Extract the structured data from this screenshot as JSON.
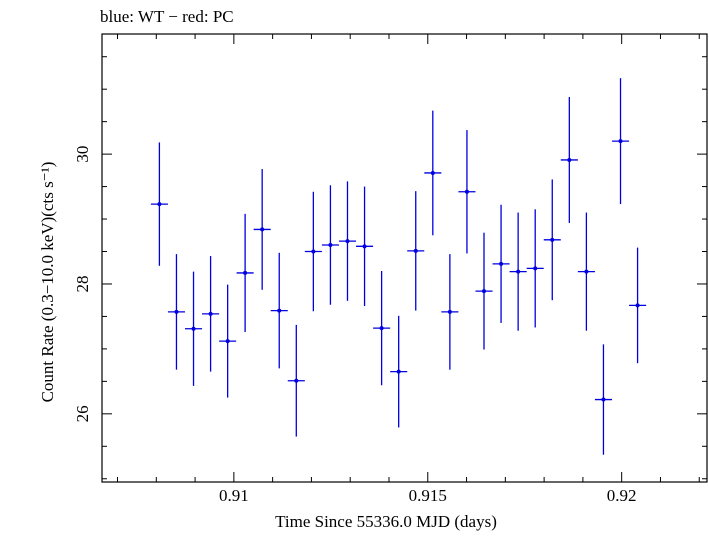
{
  "chart_data": {
    "type": "scatter",
    "title": "blue: WT − red: PC",
    "xlabel": "Time Since 55336.0 MJD (days)",
    "ylabel": "Count Rate (0.3−10.0 keV)(cts s⁻¹)",
    "xlim": [
      0.9066,
      0.9222
    ],
    "ylim": [
      24.95,
      31.85
    ],
    "xticks": [
      {
        "value": 0.91,
        "label": "0.91"
      },
      {
        "value": 0.915,
        "label": "0.915"
      },
      {
        "value": 0.92,
        "label": "0.92"
      }
    ],
    "yticks": [
      {
        "value": 26,
        "label": "26"
      },
      {
        "value": 28,
        "label": "28"
      },
      {
        "value": 30,
        "label": "30"
      }
    ],
    "x_minor_step": 0.001,
    "y_minor_step": 0.5,
    "grid": false,
    "series": [
      {
        "name": "WT",
        "color": "#0000e0",
        "points": [
          {
            "x": 0.90808,
            "xerr": 0.00022,
            "y": 29.23,
            "yerr": 0.95
          },
          {
            "x": 0.90852,
            "xerr": 0.00022,
            "y": 27.57,
            "yerr": 0.89
          },
          {
            "x": 0.90896,
            "xerr": 0.00022,
            "y": 27.31,
            "yerr": 0.88
          },
          {
            "x": 0.9094,
            "xerr": 0.00022,
            "y": 27.54,
            "yerr": 0.89
          },
          {
            "x": 0.90984,
            "xerr": 0.00022,
            "y": 27.12,
            "yerr": 0.87
          },
          {
            "x": 0.91029,
            "xerr": 0.00022,
            "y": 28.17,
            "yerr": 0.91
          },
          {
            "x": 0.91073,
            "xerr": 0.00022,
            "y": 28.84,
            "yerr": 0.93
          },
          {
            "x": 0.91117,
            "xerr": 0.00022,
            "y": 27.59,
            "yerr": 0.89
          },
          {
            "x": 0.91161,
            "xerr": 0.00022,
            "y": 26.51,
            "yerr": 0.86
          },
          {
            "x": 0.91205,
            "xerr": 0.00022,
            "y": 28.5,
            "yerr": 0.92
          },
          {
            "x": 0.91249,
            "xerr": 0.00022,
            "y": 28.6,
            "yerr": 0.92
          },
          {
            "x": 0.91293,
            "xerr": 0.00022,
            "y": 28.66,
            "yerr": 0.92
          },
          {
            "x": 0.91337,
            "xerr": 0.00022,
            "y": 28.58,
            "yerr": 0.92
          },
          {
            "x": 0.91381,
            "xerr": 0.00022,
            "y": 27.32,
            "yerr": 0.88
          },
          {
            "x": 0.91425,
            "xerr": 0.00022,
            "y": 26.65,
            "yerr": 0.86
          },
          {
            "x": 0.91469,
            "xerr": 0.00022,
            "y": 28.51,
            "yerr": 0.92
          },
          {
            "x": 0.91513,
            "xerr": 0.00022,
            "y": 29.71,
            "yerr": 0.96
          },
          {
            "x": 0.91557,
            "xerr": 0.00022,
            "y": 27.57,
            "yerr": 0.89
          },
          {
            "x": 0.91601,
            "xerr": 0.00022,
            "y": 29.42,
            "yerr": 0.95
          },
          {
            "x": 0.91645,
            "xerr": 0.00022,
            "y": 27.89,
            "yerr": 0.9
          },
          {
            "x": 0.91689,
            "xerr": 0.00022,
            "y": 28.31,
            "yerr": 0.91
          },
          {
            "x": 0.91733,
            "xerr": 0.00022,
            "y": 28.19,
            "yerr": 0.91
          },
          {
            "x": 0.91777,
            "xerr": 0.00022,
            "y": 28.24,
            "yerr": 0.91
          },
          {
            "x": 0.91821,
            "xerr": 0.00022,
            "y": 28.68,
            "yerr": 0.93
          },
          {
            "x": 0.91865,
            "xerr": 0.00022,
            "y": 29.91,
            "yerr": 0.97
          },
          {
            "x": 0.91909,
            "xerr": 0.00022,
            "y": 28.19,
            "yerr": 0.91
          },
          {
            "x": 0.91953,
            "xerr": 0.00022,
            "y": 26.22,
            "yerr": 0.85
          },
          {
            "x": 0.91997,
            "xerr": 0.00022,
            "y": 30.2,
            "yerr": 0.97
          },
          {
            "x": 0.92041,
            "xerr": 0.00022,
            "y": 27.67,
            "yerr": 0.89
          }
        ]
      }
    ]
  }
}
